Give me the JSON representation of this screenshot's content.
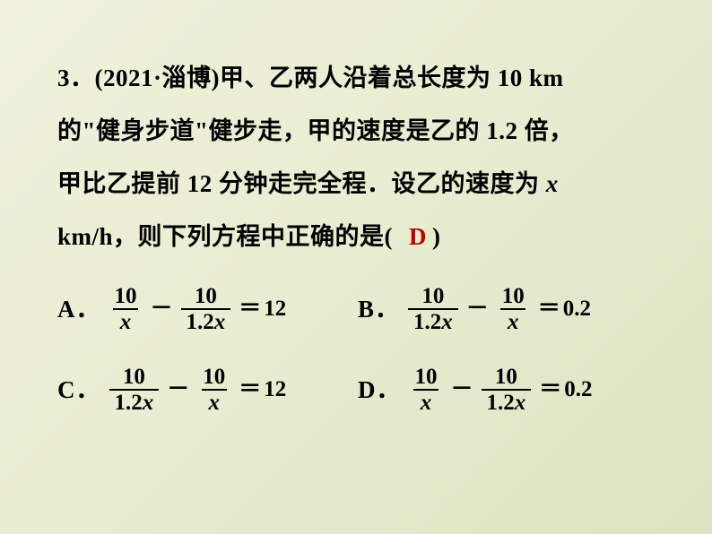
{
  "question": {
    "number": "3．",
    "source": "(2021·淄博)",
    "line1": "甲、乙两人沿着总长度为 10 km",
    "line2_part1": "的",
    "line2_quote1": "\"",
    "line2_phrase": "健身步道",
    "line2_quote2": "\"",
    "line2_part2": "健步走，甲的速度是乙的 1.2 倍，",
    "line3_part1": "甲比乙提前 12 分钟走完全程．设乙的速度为 ",
    "line3_var": "x",
    "line4_part1": "km/h，则下列方程中正确的是(",
    "answer": "D",
    "line4_part2": ")"
  },
  "options": [
    {
      "label": "A．",
      "term1": {
        "num": "10",
        "den_pre": "",
        "den_var": "x"
      },
      "op": "－",
      "term2": {
        "num": "10",
        "den_pre": "1.2",
        "den_var": "x"
      },
      "rhs": "12"
    },
    {
      "label": "B．",
      "term1": {
        "num": "10",
        "den_pre": "1.2",
        "den_var": "x"
      },
      "op": "－",
      "term2": {
        "num": "10",
        "den_pre": "",
        "den_var": "x"
      },
      "rhs": "0.2"
    },
    {
      "label": "C．",
      "term1": {
        "num": "10",
        "den_pre": "1.2",
        "den_var": "x"
      },
      "op": "－",
      "term2": {
        "num": "10",
        "den_pre": "",
        "den_var": "x"
      },
      "rhs": "12"
    },
    {
      "label": "D．",
      "term1": {
        "num": "10",
        "den_pre": "",
        "den_var": "x"
      },
      "op": "－",
      "term2": {
        "num": "10",
        "den_pre": "1.2",
        "den_var": "x"
      },
      "rhs": "0.2"
    }
  ],
  "colors": {
    "text": "#000000",
    "answer": "#c00000",
    "bg_from": "#f0f2dc",
    "bg_to": "#dde3c2"
  }
}
